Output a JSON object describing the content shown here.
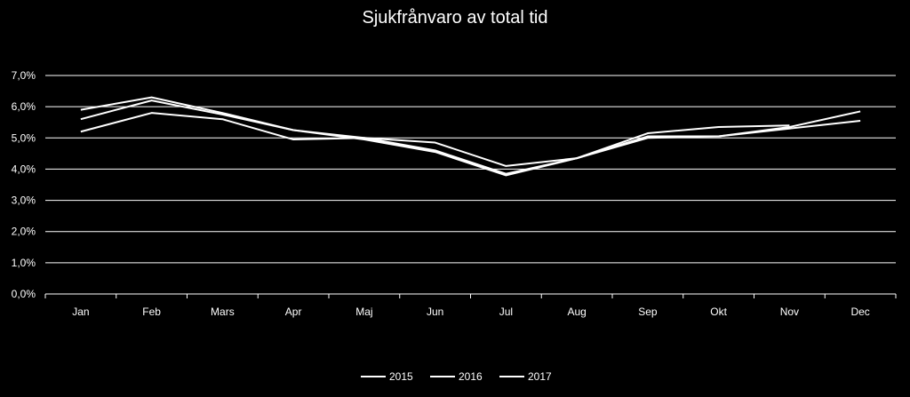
{
  "chart_data": {
    "type": "line",
    "title": "Sjukfrånvaro av total tid",
    "xlabel": "",
    "ylabel": "",
    "categories": [
      "Jan",
      "Feb",
      "Mars",
      "Apr",
      "Maj",
      "Jun",
      "Jul",
      "Aug",
      "Sep",
      "Okt",
      "Nov",
      "Dec"
    ],
    "ylim": [
      0,
      7
    ],
    "yticks": [
      0,
      1,
      2,
      3,
      4,
      5,
      6,
      7
    ],
    "ytick_labels": [
      "0,0%",
      "1,0%",
      "2,0%",
      "3,0%",
      "4,0%",
      "5,0%",
      "6,0%",
      "7,0%"
    ],
    "grid": true,
    "legend_position": "bottom",
    "series": [
      {
        "name": "2015",
        "color": "#ffffff",
        "values": [
          5.2,
          5.8,
          5.6,
          4.95,
          5.0,
          4.85,
          4.1,
          4.35,
          5.0,
          5.05,
          5.35,
          5.85
        ]
      },
      {
        "name": "2016",
        "color": "#ffffff",
        "values": [
          5.6,
          6.2,
          5.75,
          5.25,
          5.0,
          4.6,
          3.85,
          4.35,
          5.15,
          5.35,
          5.4,
          null
        ]
      },
      {
        "name": "2017",
        "color": "#ffffff",
        "values": [
          5.9,
          6.3,
          5.8,
          5.25,
          4.95,
          4.55,
          3.8,
          4.35,
          5.05,
          5.05,
          5.3,
          5.55
        ]
      }
    ]
  }
}
